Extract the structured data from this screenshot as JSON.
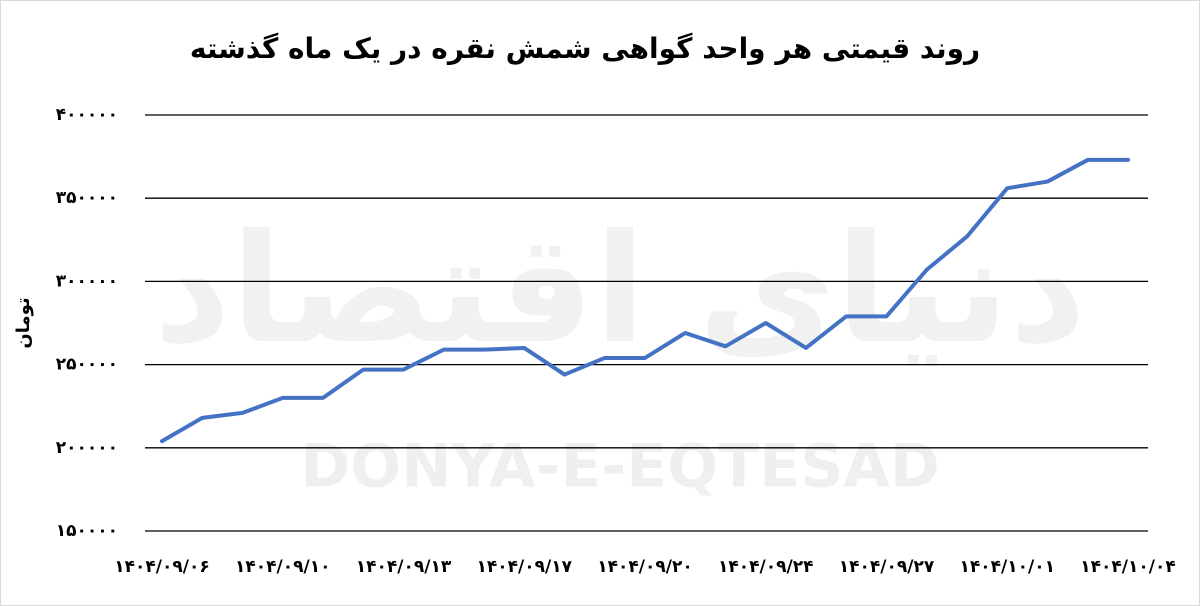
{
  "chart_data": {
    "type": "line",
    "title": "روند قیمتی هر واحد گواهی شمش نقره در یک ماه گذشته",
    "y_label": "تومان",
    "watermark": [
      "دنیای اقتصاد",
      "DONYA-E-EQTESAD"
    ],
    "categories": [
      "۱۴۰۴/۰۹/۰۶",
      null,
      null,
      "۱۴۰۴/۰۹/۱۰",
      null,
      null,
      "۱۴۰۴/۰۹/۱۳",
      null,
      null,
      "۱۴۰۴/۰۹/۱۷",
      null,
      null,
      "۱۴۰۴/۰۹/۲۰",
      null,
      null,
      "۱۴۰۴/۰۹/۲۴",
      null,
      null,
      "۱۴۰۴/۰۹/۲۷",
      null,
      null,
      "۱۴۰۴/۱۰/۰۱",
      null,
      null,
      "۱۴۰۴/۱۰/۰۴"
    ],
    "series": [
      {
        "color": "#4472c4",
        "values": [
          204000,
          218000,
          221000,
          230000,
          230000,
          247000,
          247000,
          259000,
          259000,
          260000,
          244000,
          254000,
          254000,
          269000,
          261000,
          275000,
          260000,
          279000,
          279000,
          307000,
          327000,
          356000,
          360000,
          373000,
          373000
        ]
      }
    ],
    "ylim": [
      150000,
      400000
    ],
    "yticks": [
      {
        "value": 150000,
        "label": "۱۵۰۰۰۰"
      },
      {
        "value": 200000,
        "label": "۲۰۰۰۰۰"
      },
      {
        "value": 250000,
        "label": "۲۵۰۰۰۰"
      },
      {
        "value": 300000,
        "label": "۳۰۰۰۰۰"
      },
      {
        "value": 350000,
        "label": "۳۵۰۰۰۰"
      },
      {
        "value": 400000,
        "label": "۴۰۰۰۰۰"
      }
    ],
    "grid": true
  }
}
